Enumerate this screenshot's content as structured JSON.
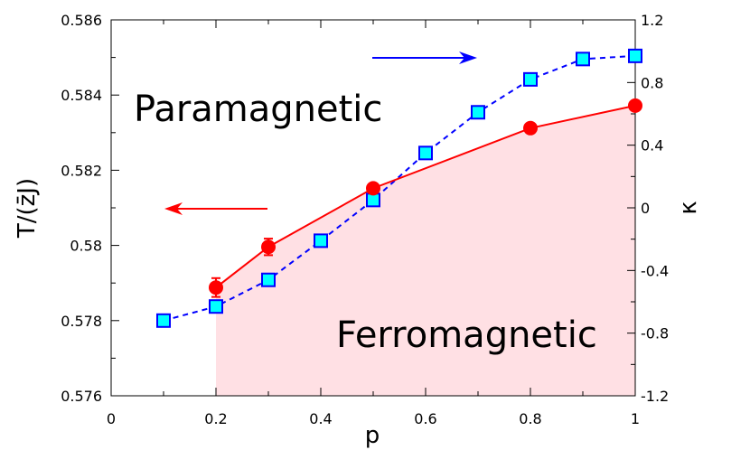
{
  "chart_data": {
    "type": "line",
    "xlabel": "p",
    "ylabel_left": "T/(z̄J)",
    "ylabel_right": "κ",
    "xlim": [
      0,
      1
    ],
    "ylim_left": [
      0.576,
      0.586
    ],
    "ylim_right": [
      -1.2,
      1.2
    ],
    "x_ticks": [
      "0",
      "0.2",
      "0.4",
      "0.6",
      "0.8",
      "1"
    ],
    "y_left_ticks": [
      "0.576",
      "0.578",
      "0.58",
      "0.582",
      "0.584",
      "0.586"
    ],
    "y_right_ticks": [
      "-1.2",
      "-0.8",
      "-0.4",
      "0",
      "0.4",
      "0.8",
      "1.2"
    ],
    "grid": false,
    "annotations": {
      "paramagnetic": "Paramagnetic",
      "ferromagnetic": "Ferromagnetic"
    },
    "series": [
      {
        "axis": "left",
        "color": "#ff0000",
        "marker": "circle",
        "line": "solid",
        "x": [
          0.2,
          0.3,
          0.5,
          0.8,
          1.0
        ],
        "values": [
          0.57888,
          0.57996,
          0.58152,
          0.58312,
          0.58372
        ],
        "errors": [
          0.00025,
          0.00022,
          0.0001,
          0.0001,
          0.0001
        ]
      },
      {
        "axis": "right",
        "color": "#0000ff",
        "fill": "#00ffff",
        "marker": "square",
        "line": "dashed",
        "x": [
          0.1,
          0.2,
          0.3,
          0.4,
          0.5,
          0.6,
          0.7,
          0.8,
          0.9,
          1.0
        ],
        "values": [
          -0.72,
          -0.63,
          -0.46,
          -0.21,
          0.05,
          0.35,
          0.61,
          0.82,
          0.95,
          0.97
        ]
      }
    ],
    "shaded_region": {
      "color": "#ffe0e4",
      "description_boundary": "left series from p=0.2 to p=1"
    },
    "arrows": [
      {
        "color": "#ff0000",
        "direction": "left",
        "axis": "left"
      },
      {
        "color": "#0000ff",
        "direction": "right",
        "axis": "right"
      }
    ]
  }
}
